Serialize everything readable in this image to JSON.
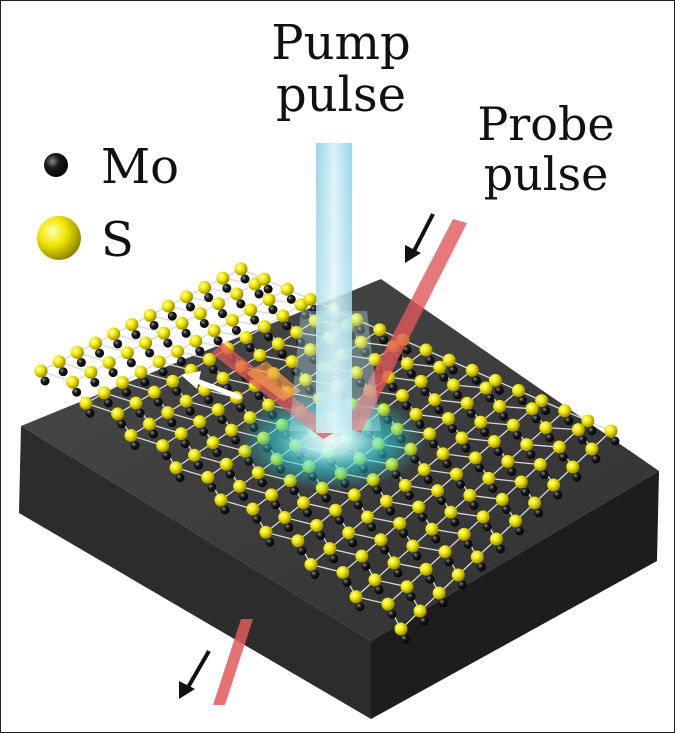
{
  "labels": {
    "pump": [
      "Pump",
      "pulse"
    ],
    "probe": [
      "Probe",
      "pulse"
    ]
  },
  "legend": [
    {
      "symbol": "Mo",
      "color": "#111111"
    },
    {
      "symbol": "S",
      "color": "#e8e000"
    }
  ],
  "colors": {
    "substrate_top": "#3d3d3d",
    "substrate_front": "#2a2a2a",
    "substrate_side": "#1f1f1f",
    "pump_beam": "#9fdcec",
    "probe_beam": "#e0575a",
    "excitation_glow": "#2fd8e0",
    "mo_atom": "#111111",
    "s_atom": "#e6df00",
    "bond": "#dcdcdc",
    "arrow": "#111111"
  },
  "icons": [
    "mo-atom-icon",
    "s-atom-icon",
    "probe-incoming-arrow-icon",
    "probe-outgoing-arrow-icon",
    "wave-propagation-arrow-icon"
  ]
}
